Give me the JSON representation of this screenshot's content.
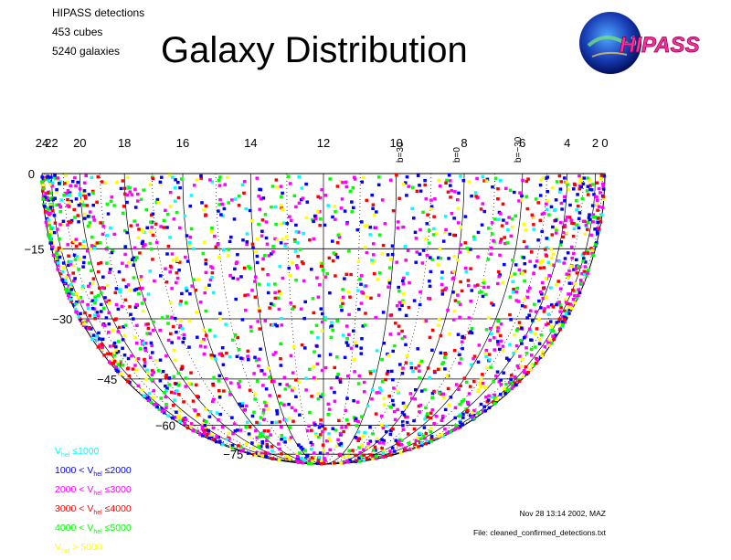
{
  "header": {
    "info_lines": [
      "HIPASS detections",
      "453 cubes",
      "5240 galaxies"
    ],
    "title": "Galaxy Distribution",
    "logo_text": "HIPASS"
  },
  "chart_data": {
    "type": "scatter",
    "projection": "hemisphere (Aitoff-like), southern sky",
    "title": "Galaxy Distribution",
    "x_axis": {
      "label": "",
      "ticks": [
        "24",
        "22",
        "20",
        "18",
        "16",
        "14",
        "12",
        "10",
        "8",
        "6",
        "4",
        "2",
        "0"
      ],
      "range": [
        24,
        0
      ]
    },
    "y_axis": {
      "label": "",
      "ticks": [
        "0",
        "−15",
        "−30",
        "−45",
        "−60",
        "−75"
      ],
      "range": [
        0,
        -90
      ]
    },
    "galactic_latitude_labels": [
      "b=30",
      "b=0",
      "b=−30"
    ],
    "series": [
      {
        "name": "V_hel ≤ 1000",
        "color": "#00ffff"
      },
      {
        "name": "1000 < V_hel ≤ 2000",
        "color": "#0000ff"
      },
      {
        "name": "2000 < V_hel ≤ 3000",
        "color": "#ff00ff"
      },
      {
        "name": "3000 < V_hel ≤ 4000",
        "color": "#ff0000"
      },
      {
        "name": "4000 < V_hel ≤ 5000",
        "color": "#00ff00"
      },
      {
        "name": "V_hel > 5000",
        "color": "#ffff00"
      }
    ],
    "total_points": 5240
  },
  "legend": [
    {
      "pre": "V",
      "sub": "hel",
      "post": " ≤1000",
      "color": "#00ffff"
    },
    {
      "pre": "1000 < V",
      "sub": "hel",
      "post": " ≤2000",
      "color": "#0000ff"
    },
    {
      "pre": "2000 < V",
      "sub": "hel",
      "post": " ≤3000",
      "color": "#ff00ff"
    },
    {
      "pre": "3000 < V",
      "sub": "hel",
      "post": " ≤4000",
      "color": "#ff0000"
    },
    {
      "pre": "4000 < V",
      "sub": "hel",
      "post": " ≤5000",
      "color": "#00ff00"
    },
    {
      "pre": "V",
      "sub": "hel",
      "post": " > 5000",
      "color": "#ffff00"
    }
  ],
  "footer": {
    "date": "Nov 28 13:14 2002, MAZ",
    "file": "File: cleaned_confirmed_detections.txt"
  }
}
